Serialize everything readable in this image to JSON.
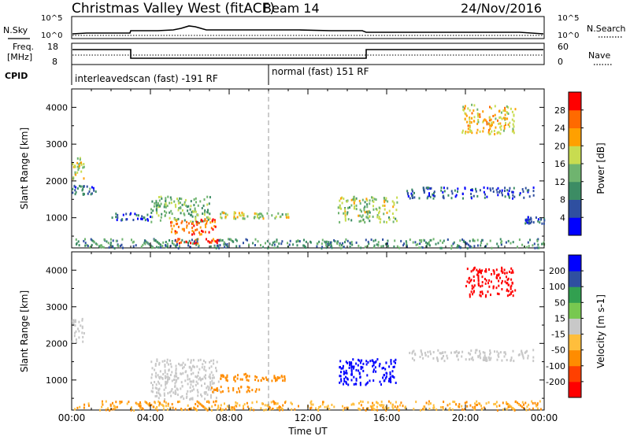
{
  "header": {
    "title": "Christmas Valley West (fitACF)",
    "beam": "Beam 14",
    "date": "24/Nov/2016"
  },
  "nsky_panel": {
    "left_label": "N.Sky",
    "right_label": "N.Search",
    "left_ticks": [
      "10^5",
      "10^0"
    ],
    "right_ticks": [
      "10^5",
      "10^0"
    ],
    "legend_line": "solid",
    "legend_dotted": "dotted"
  },
  "freq_panel": {
    "left_label_1": "Freq.",
    "left_label_2": "[MHz]",
    "right_label": "Nave",
    "left_ticks": [
      "18",
      "8"
    ],
    "right_ticks": [
      "60",
      "0"
    ]
  },
  "cpid": {
    "label": "CPID",
    "modes": [
      {
        "text": "interleavedscan (fast) -191 RF",
        "start_h": 0,
        "end_h": 10
      },
      {
        "text": "normal (fast) 151 RF",
        "start_h": 10,
        "end_h": 24
      }
    ]
  },
  "colors": {
    "power_scale": [
      "#0000ff",
      "#2f4fa0",
      "#3c8c64",
      "#6fb46f",
      "#c8dc50",
      "#ffa000",
      "#ff6a00",
      "#ff0000"
    ],
    "velocity_scale": [
      "#ff0000",
      "#ff4000",
      "#ff8c00",
      "#ffbe3c",
      "#c8c8c8",
      "#78c850",
      "#32a050",
      "#2f4fa0",
      "#0000ff"
    ]
  },
  "chart_data": [
    {
      "type": "heatmap",
      "panel": "power",
      "title": "",
      "xlabel": "Time UT",
      "ylabel": "Slant Range [km]",
      "colorbar_label": "Power [dB]",
      "colorbar_ticks": [
        "4",
        "8",
        "12",
        "16",
        "20",
        "24",
        "28"
      ],
      "xlim": [
        0,
        24
      ],
      "ylim": [
        180,
        4500
      ],
      "x_ticks": [
        "00:00",
        "04:00",
        "08:00",
        "12:00",
        "16:00",
        "20:00",
        "00:00"
      ],
      "y_ticks": [
        "1000",
        "2000",
        "3000",
        "4000"
      ],
      "regions": [
        {
          "t0": 0.0,
          "t1": 0.6,
          "r0": 2050,
          "r1": 2700,
          "value": 20
        },
        {
          "t0": 0.0,
          "t1": 1.2,
          "r0": 1650,
          "r1": 1900,
          "value": 10
        },
        {
          "t0": 4.0,
          "t1": 7.0,
          "r0": 900,
          "r1": 1600,
          "value": 16
        },
        {
          "t0": 5.0,
          "t1": 7.3,
          "r0": 550,
          "r1": 1000,
          "value": 28
        },
        {
          "t0": 5.2,
          "t1": 7.5,
          "r0": 330,
          "r1": 450,
          "value": 30
        },
        {
          "t0": 2.0,
          "t1": 4.0,
          "r0": 950,
          "r1": 1150,
          "value": 8
        },
        {
          "t0": 7.5,
          "t1": 9.0,
          "r0": 1000,
          "r1": 1200,
          "value": 20
        },
        {
          "t0": 9.2,
          "t1": 11.0,
          "r0": 1000,
          "r1": 1150,
          "value": 18
        },
        {
          "t0": 13.5,
          "t1": 16.5,
          "r0": 900,
          "r1": 1600,
          "value": 18
        },
        {
          "t0": 17.0,
          "t1": 23.5,
          "r0": 1550,
          "r1": 1850,
          "value": 8
        },
        {
          "t0": 19.8,
          "t1": 22.5,
          "r0": 3300,
          "r1": 4100,
          "value": 22
        },
        {
          "t0": 23.0,
          "t1": 24.0,
          "r0": 850,
          "r1": 1050,
          "value": 8
        },
        {
          "t0": 0.0,
          "t1": 24.0,
          "r0": 200,
          "r1": 450,
          "value": 12
        }
      ]
    },
    {
      "type": "heatmap",
      "panel": "velocity",
      "title": "",
      "xlabel": "Time UT",
      "ylabel": "Slant Range [km]",
      "colorbar_label": "Velocity [m s-1]",
      "colorbar_ticks": [
        "-200",
        "-100",
        "-50",
        "-15",
        "15",
        "50",
        "100",
        "200"
      ],
      "xlim": [
        0,
        24
      ],
      "ylim": [
        180,
        4500
      ],
      "x_ticks": [
        "00:00",
        "04:00",
        "08:00",
        "12:00",
        "16:00",
        "20:00",
        "00:00"
      ],
      "y_ticks": [
        "1000",
        "2000",
        "3000",
        "4000"
      ],
      "regions": [
        {
          "t0": 0.0,
          "t1": 0.6,
          "r0": 2050,
          "r1": 2700,
          "value": 0
        },
        {
          "t0": 4.0,
          "t1": 7.5,
          "r0": 500,
          "r1": 1600,
          "value": 0
        },
        {
          "t0": 7.5,
          "t1": 9.0,
          "r0": 1000,
          "r1": 1200,
          "value": -60
        },
        {
          "t0": 9.2,
          "t1": 11.0,
          "r0": 1000,
          "r1": 1150,
          "value": -60
        },
        {
          "t0": 7.0,
          "t1": 9.5,
          "r0": 700,
          "r1": 850,
          "value": -60
        },
        {
          "t0": 13.5,
          "t1": 16.5,
          "r0": 900,
          "r1": 1600,
          "value": 220
        },
        {
          "t0": 17.0,
          "t1": 23.5,
          "r0": 1550,
          "r1": 1850,
          "value": 0
        },
        {
          "t0": 20.0,
          "t1": 22.5,
          "r0": 3300,
          "r1": 4100,
          "value": -220
        },
        {
          "t0": 0.0,
          "t1": 24.0,
          "r0": 200,
          "r1": 450,
          "value": -30
        }
      ]
    }
  ]
}
